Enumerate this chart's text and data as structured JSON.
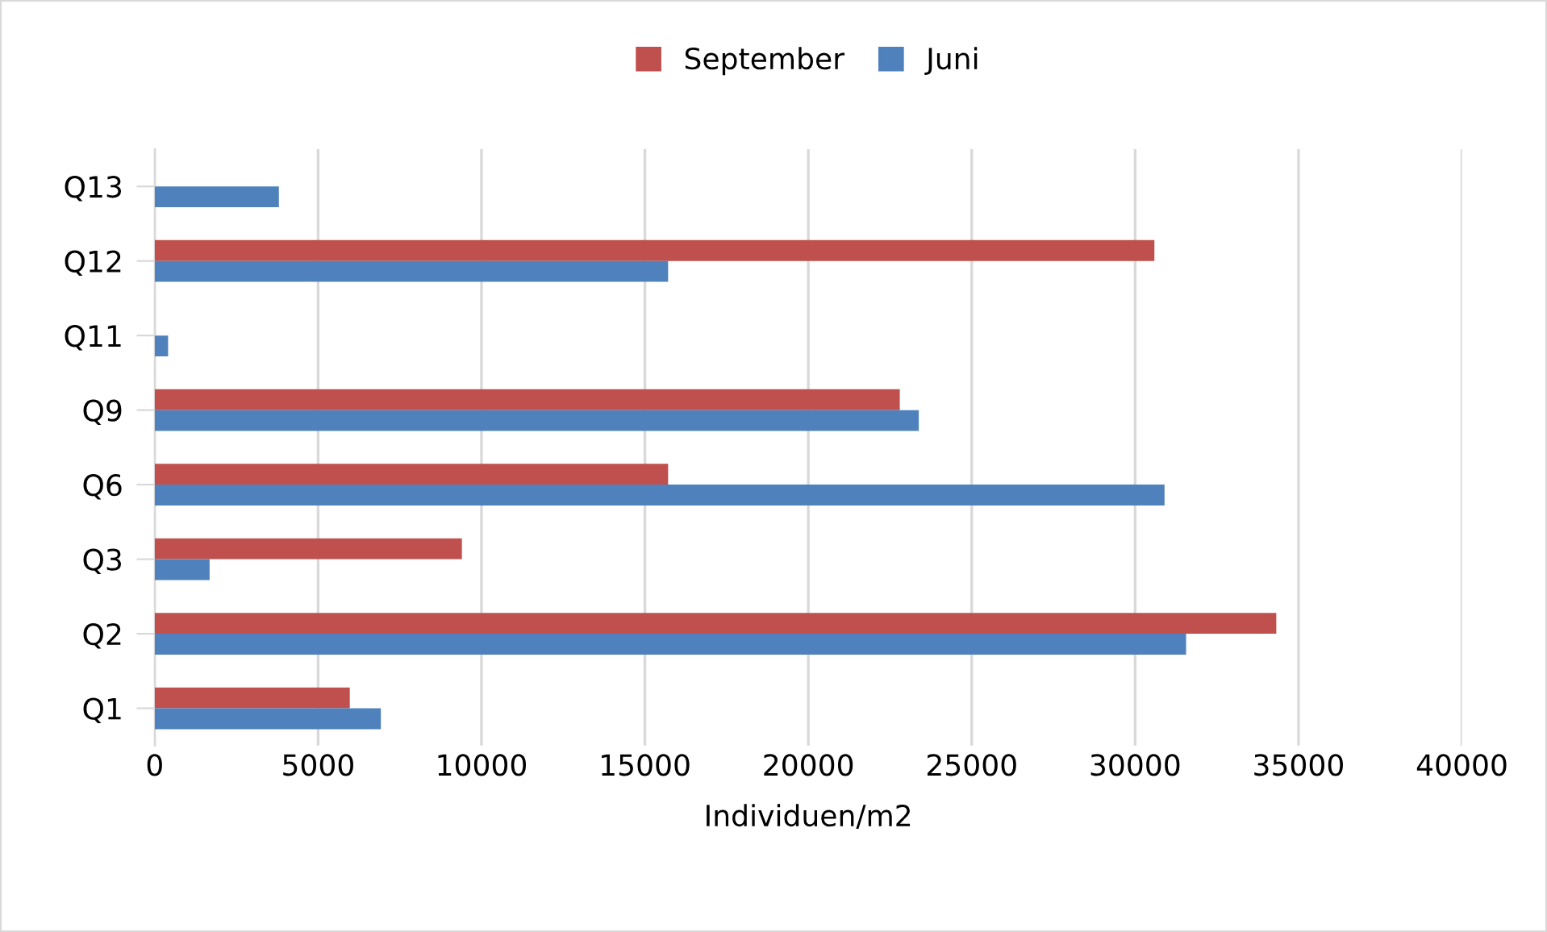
{
  "chart_data": {
    "type": "bar",
    "orientation": "horizontal",
    "xlabel": "Individuen/m2",
    "categories": [
      "Q13",
      "Q12",
      "Q11",
      "Q9",
      "Q6",
      "Q3",
      "Q2",
      "Q1"
    ],
    "series": [
      {
        "name": "September",
        "color": "#c0504d",
        "values": [
          null,
          30590,
          null,
          22800,
          15710,
          9400,
          34320,
          5970
        ]
      },
      {
        "name": "Juni",
        "color": "#4f81bd",
        "values": [
          3800,
          15710,
          410,
          23380,
          30900,
          1680,
          31560,
          6920
        ]
      }
    ],
    "xlim": [
      0,
      40000
    ],
    "xticks": [
      0,
      5000,
      10000,
      15000,
      20000,
      25000,
      30000,
      35000,
      40000
    ],
    "grid": "x",
    "legend": "top"
  }
}
